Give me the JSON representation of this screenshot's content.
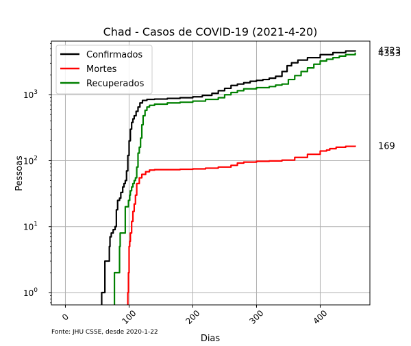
{
  "chart_data": {
    "type": "line",
    "title": "Chad - Casos de COVID-19 (2021-4-20)",
    "xlabel": "Dias",
    "ylabel": "Pessoas",
    "source_note": "Fonte: JHU CSSE, desde 2020-1-22",
    "yscale": "log",
    "xlim": [
      -22,
      478
    ],
    "ylim": [
      0.65,
      6500
    ],
    "grid": true,
    "legend_position": "top-left",
    "x_ticks": [
      {
        "value": 0,
        "label": "0"
      },
      {
        "value": 100,
        "label": "100"
      },
      {
        "value": 200,
        "label": "200"
      },
      {
        "value": 300,
        "label": "300"
      },
      {
        "value": 400,
        "label": "400"
      }
    ],
    "y_ticks": [
      {
        "value": 1,
        "base": "10",
        "exp": "0"
      },
      {
        "value": 10,
        "base": "10",
        "exp": "1"
      },
      {
        "value": 100,
        "base": "10",
        "exp": "2"
      },
      {
        "value": 1000,
        "base": "10",
        "exp": "3"
      }
    ],
    "series": [
      {
        "name": "Confirmados",
        "color": "#000000",
        "end_label": "4723",
        "points": [
          [
            57,
            0.5
          ],
          [
            57,
            1
          ],
          [
            62,
            1
          ],
          [
            62,
            3
          ],
          [
            68,
            3
          ],
          [
            69,
            5
          ],
          [
            70,
            7
          ],
          [
            72,
            8
          ],
          [
            75,
            9
          ],
          [
            78,
            10
          ],
          [
            80,
            18
          ],
          [
            82,
            25
          ],
          [
            85,
            27
          ],
          [
            87,
            33
          ],
          [
            89,
            33
          ],
          [
            90,
            40
          ],
          [
            92,
            45
          ],
          [
            94,
            50
          ],
          [
            96,
            70
          ],
          [
            98,
            120
          ],
          [
            100,
            200
          ],
          [
            102,
            300
          ],
          [
            104,
            380
          ],
          [
            106,
            430
          ],
          [
            108,
            480
          ],
          [
            111,
            560
          ],
          [
            114,
            650
          ],
          [
            117,
            750
          ],
          [
            121,
            820
          ],
          [
            128,
            850
          ],
          [
            140,
            860
          ],
          [
            160,
            880
          ],
          [
            180,
            900
          ],
          [
            200,
            930
          ],
          [
            215,
            980
          ],
          [
            230,
            1050
          ],
          [
            240,
            1150
          ],
          [
            250,
            1250
          ],
          [
            260,
            1380
          ],
          [
            270,
            1450
          ],
          [
            280,
            1520
          ],
          [
            290,
            1600
          ],
          [
            300,
            1650
          ],
          [
            310,
            1700
          ],
          [
            320,
            1780
          ],
          [
            330,
            1900
          ],
          [
            340,
            2250
          ],
          [
            348,
            2750
          ],
          [
            355,
            3050
          ],
          [
            365,
            3350
          ],
          [
            380,
            3650
          ],
          [
            400,
            4050
          ],
          [
            420,
            4350
          ],
          [
            440,
            4600
          ],
          [
            455,
            4723
          ]
        ]
      },
      {
        "name": "Mortes",
        "color": "#ff0000",
        "end_label": "169",
        "points": [
          [
            98,
            0.5
          ],
          [
            98,
            1
          ],
          [
            99,
            2
          ],
          [
            100,
            5
          ],
          [
            101,
            6
          ],
          [
            102,
            8
          ],
          [
            104,
            12
          ],
          [
            106,
            17
          ],
          [
            108,
            22
          ],
          [
            110,
            30
          ],
          [
            112,
            45
          ],
          [
            116,
            55
          ],
          [
            120,
            62
          ],
          [
            126,
            68
          ],
          [
            132,
            72
          ],
          [
            140,
            73
          ],
          [
            160,
            73
          ],
          [
            180,
            74
          ],
          [
            200,
            75
          ],
          [
            220,
            77
          ],
          [
            240,
            80
          ],
          [
            260,
            85
          ],
          [
            270,
            92
          ],
          [
            280,
            95
          ],
          [
            300,
            98
          ],
          [
            320,
            99
          ],
          [
            340,
            102
          ],
          [
            360,
            112
          ],
          [
            380,
            125
          ],
          [
            400,
            140
          ],
          [
            410,
            145
          ],
          [
            415,
            152
          ],
          [
            425,
            160
          ],
          [
            440,
            165
          ],
          [
            455,
            169
          ]
        ]
      },
      {
        "name": "Recuperados",
        "color": "#008000",
        "end_label": "4353",
        "points": [
          [
            77,
            0.5
          ],
          [
            77,
            2
          ],
          [
            84,
            2
          ],
          [
            85,
            5
          ],
          [
            86,
            8
          ],
          [
            92,
            8
          ],
          [
            94,
            20
          ],
          [
            98,
            20
          ],
          [
            99,
            25
          ],
          [
            101,
            30
          ],
          [
            102,
            35
          ],
          [
            104,
            40
          ],
          [
            106,
            45
          ],
          [
            108,
            50
          ],
          [
            110,
            55
          ],
          [
            112,
            80
          ],
          [
            114,
            130
          ],
          [
            116,
            160
          ],
          [
            118,
            220
          ],
          [
            120,
            350
          ],
          [
            122,
            480
          ],
          [
            125,
            580
          ],
          [
            128,
            650
          ],
          [
            132,
            690
          ],
          [
            140,
            720
          ],
          [
            160,
            750
          ],
          [
            180,
            770
          ],
          [
            200,
            800
          ],
          [
            220,
            850
          ],
          [
            240,
            900
          ],
          [
            250,
            1000
          ],
          [
            260,
            1080
          ],
          [
            270,
            1150
          ],
          [
            280,
            1230
          ],
          [
            300,
            1280
          ],
          [
            320,
            1330
          ],
          [
            330,
            1400
          ],
          [
            340,
            1450
          ],
          [
            350,
            1700
          ],
          [
            360,
            1950
          ],
          [
            370,
            2250
          ],
          [
            380,
            2550
          ],
          [
            390,
            2900
          ],
          [
            400,
            3250
          ],
          [
            410,
            3450
          ],
          [
            420,
            3650
          ],
          [
            430,
            3850
          ],
          [
            440,
            4050
          ],
          [
            455,
            4353
          ]
        ]
      }
    ]
  }
}
